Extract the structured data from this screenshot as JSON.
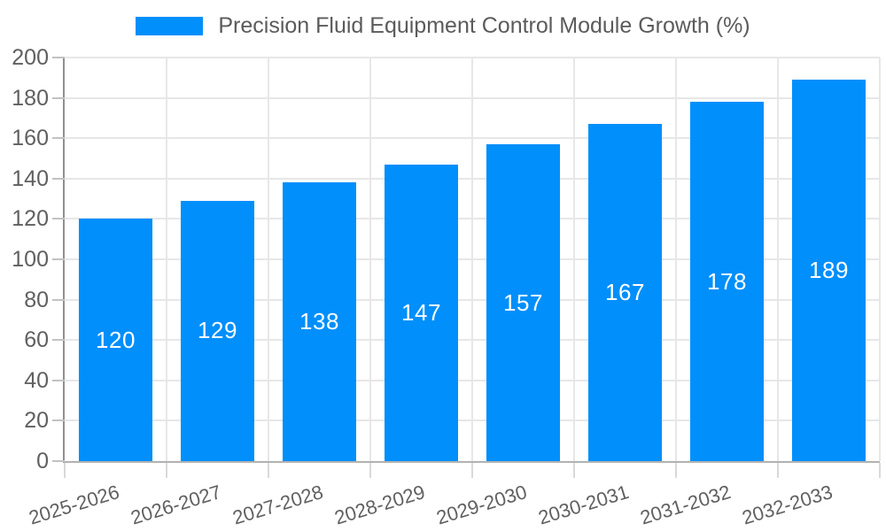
{
  "legend": {
    "label": "Precision Fluid Equipment Control Module Growth (%)"
  },
  "chart_data": {
    "type": "bar",
    "title": "Precision Fluid Equipment Control Module Growth (%)",
    "categories": [
      "2025-2026",
      "2026-2027",
      "2027-2028",
      "2028-2029",
      "2029-2030",
      "2030-2031",
      "2031-2032",
      "2032-2033"
    ],
    "values": [
      120,
      129,
      138,
      147,
      157,
      167,
      178,
      189
    ],
    "xlabel": "",
    "ylabel": "",
    "ylim": [
      0,
      200
    ],
    "yticks": [
      0,
      20,
      40,
      60,
      80,
      100,
      120,
      140,
      160,
      180,
      200
    ],
    "grid": true,
    "grid_vertical": true,
    "legend_position": "top-center",
    "value_labels": "centered-inside-bars",
    "colors": {
      "bar": "#008FFB",
      "value_label": "#ffffff",
      "grid": "#e7e7e7",
      "axis_text": "#606060",
      "legend_text": "#5b5b5b"
    }
  }
}
